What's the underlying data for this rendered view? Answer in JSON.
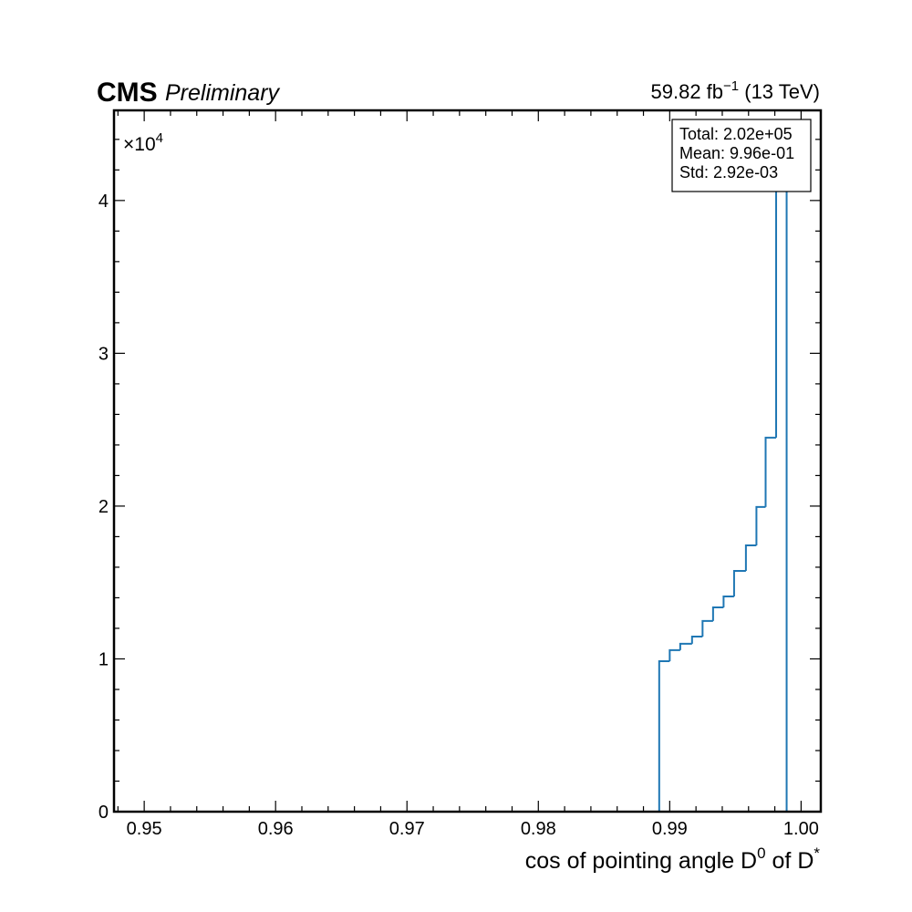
{
  "chart_data": {
    "type": "histogram",
    "experiment": "CMS",
    "status": "Preliminary",
    "lumi": {
      "text": "59.82 fb",
      "exponent": "−1",
      "energy": "(13 TeV)"
    },
    "x_label": {
      "text": "cos of pointing angle D",
      "sup1": "0",
      "text2": " of D",
      "sup2": "*"
    },
    "y_multiplier": {
      "base": "×10",
      "exponent": "4"
    },
    "stats": [
      "Total: 2.02e+05",
      "Mean: 9.96e-01",
      "Std: 2.92e-03"
    ],
    "bins": [
      0.9892,
      0.99,
      0.9908,
      0.9917,
      0.9925,
      0.9933,
      0.9941,
      0.9949,
      0.9958,
      0.9966,
      0.9973,
      0.9981,
      0.9989
    ],
    "values": [
      9850,
      10570,
      10990,
      11460,
      12480,
      13370,
      14090,
      15760,
      17430,
      19940,
      24480,
      41670
    ],
    "color": "#1f77b4",
    "xlim": [
      0.9477,
      1.0015
    ],
    "ylim": [
      0,
      45900
    ],
    "xticks": [
      {
        "value": 0.95,
        "label": "0.95"
      },
      {
        "value": 0.96,
        "label": "0.96"
      },
      {
        "value": 0.97,
        "label": "0.97"
      },
      {
        "value": 0.98,
        "label": "0.98"
      },
      {
        "value": 0.99,
        "label": "0.99"
      },
      {
        "value": 1.0,
        "label": "1.00"
      }
    ],
    "yticks": [
      {
        "value": 0,
        "label": "0"
      },
      {
        "value": 10000,
        "label": "1"
      },
      {
        "value": 20000,
        "label": "2"
      },
      {
        "value": 30000,
        "label": "3"
      },
      {
        "value": 40000,
        "label": "4"
      }
    ],
    "xminorticks": [
      0.948,
      0.952,
      0.954,
      0.956,
      0.958,
      0.962,
      0.964,
      0.966,
      0.968,
      0.972,
      0.974,
      0.976,
      0.978,
      0.982,
      0.984,
      0.986,
      0.988,
      0.992,
      0.994,
      0.996,
      0.998
    ],
    "yminorticks": [
      2000,
      4000,
      6000,
      8000,
      12000,
      14000,
      16000,
      18000,
      22000,
      24000,
      26000,
      28000,
      32000,
      34000,
      36000,
      38000,
      42000,
      44000
    ]
  }
}
